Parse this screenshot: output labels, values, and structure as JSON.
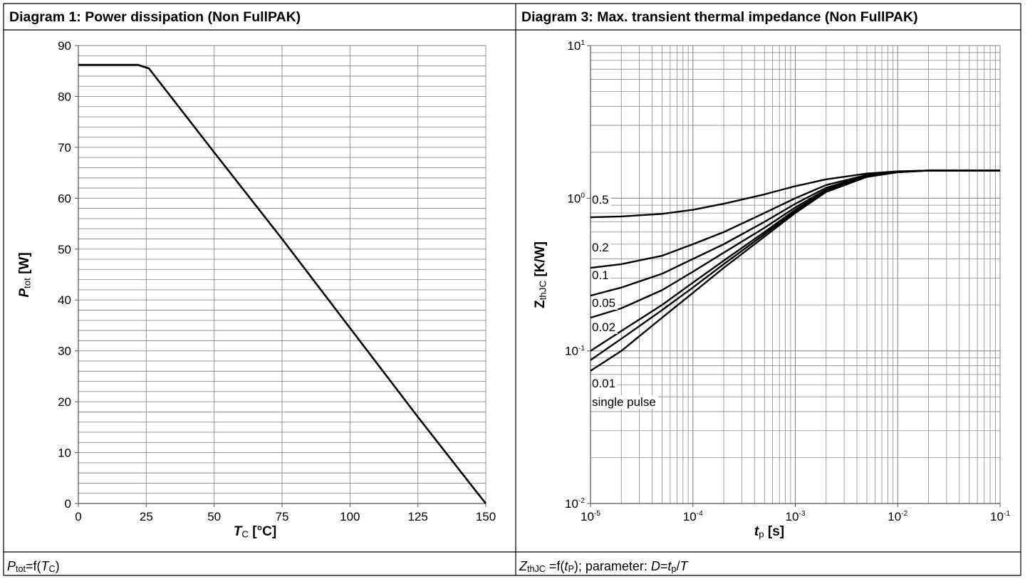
{
  "panels": [
    {
      "header": "Diagram 1: Power dissipation (Non FullPAK)",
      "footer": [
        {
          "t": "P",
          "i": true
        },
        {
          "t": "tot",
          "sub": true
        },
        {
          "t": "=f("
        },
        {
          "t": "T",
          "i": true
        },
        {
          "t": "C",
          "sub": true
        },
        {
          "t": ")"
        }
      ]
    },
    {
      "header": "Diagram 3: Max. transient thermal impedance (Non FullPAK)",
      "footer": [
        {
          "t": "Z",
          "i": true
        },
        {
          "t": "thJC",
          "sub": true
        },
        {
          "t": " =f("
        },
        {
          "t": "t",
          "i": true
        },
        {
          "t": "P",
          "sub": true
        },
        {
          "t": "); parameter: "
        },
        {
          "t": "D",
          "i": true
        },
        {
          "t": "="
        },
        {
          "t": "t",
          "i": true
        },
        {
          "t": "p",
          "sub": true
        },
        {
          "t": "/"
        },
        {
          "t": "T",
          "i": true
        }
      ]
    }
  ],
  "chart_data": [
    {
      "type": "line",
      "title": "Diagram 1: Power dissipation (Non FullPAK)",
      "xlabel": [
        {
          "t": "T",
          "b": true,
          "i": true
        },
        {
          "t": "C",
          "sub": true
        },
        {
          "t": " [°C]",
          "b": true
        }
      ],
      "ylabel": [
        {
          "t": "P",
          "b": true,
          "i": true
        },
        {
          "t": "tot",
          "sub": true
        },
        {
          "t": " [W]",
          "b": true
        }
      ],
      "xlim": [
        0,
        150
      ],
      "ylim": [
        0,
        90
      ],
      "x_ticks": [
        0,
        25,
        50,
        75,
        100,
        125,
        150
      ],
      "y_ticks": [
        0,
        10,
        20,
        30,
        40,
        50,
        60,
        70,
        80,
        90
      ],
      "grid": true,
      "series": [
        {
          "x": [
            0,
            22,
            26,
            50,
            75,
            100,
            125,
            147,
            150
          ],
          "y": [
            86.2,
            86.2,
            85.5,
            69,
            52,
            34.5,
            17,
            2,
            0
          ]
        }
      ]
    },
    {
      "type": "line",
      "title": "Diagram 3: Max. transient thermal impedance (Non FullPAK)",
      "xlabel": [
        {
          "t": "t",
          "b": true,
          "i": true
        },
        {
          "t": "p",
          "sub": true
        },
        {
          "t": " [s]",
          "b": true
        }
      ],
      "ylabel": [
        {
          "t": "Z",
          "b": true
        },
        {
          "t": "thJC",
          "sub": true
        },
        {
          "t": " [K/W]",
          "b": true
        }
      ],
      "x_scale": "log",
      "y_scale": "log",
      "xlim": [
        1e-05,
        0.1
      ],
      "ylim": [
        0.01,
        10
      ],
      "x_ticks": [
        {
          "base": "10",
          "exp": "-5"
        },
        {
          "base": "10",
          "exp": "-4"
        },
        {
          "base": "10",
          "exp": "-3"
        },
        {
          "base": "10",
          "exp": "-2"
        },
        {
          "base": "10",
          "exp": "-1"
        }
      ],
      "y_ticks": [
        {
          "base": "10",
          "exp": "-2"
        },
        {
          "base": "10",
          "exp": "-1"
        },
        {
          "base": "10",
          "exp": "0"
        },
        {
          "base": "10",
          "exp": "1"
        }
      ],
      "grid": true,
      "x": [
        1e-05,
        2e-05,
        5e-05,
        0.0001,
        0.0002,
        0.0005,
        0.001,
        0.002,
        0.005,
        0.01,
        0.02,
        0.05,
        0.1
      ],
      "series": [
        {
          "name": "0.5",
          "y": [
            0.75,
            0.76,
            0.79,
            0.84,
            0.92,
            1.06,
            1.2,
            1.33,
            1.45,
            1.5,
            1.52,
            1.52,
            1.52
          ]
        },
        {
          "name": "0.2",
          "y": [
            0.35,
            0.37,
            0.42,
            0.5,
            0.6,
            0.8,
            1.0,
            1.22,
            1.42,
            1.49,
            1.52,
            1.52,
            1.52
          ]
        },
        {
          "name": "0.1",
          "y": [
            0.23,
            0.26,
            0.32,
            0.4,
            0.5,
            0.7,
            0.92,
            1.17,
            1.41,
            1.49,
            1.52,
            1.52,
            1.52
          ]
        },
        {
          "name": "0.05",
          "y": [
            0.165,
            0.19,
            0.25,
            0.33,
            0.44,
            0.64,
            0.87,
            1.14,
            1.4,
            1.49,
            1.52,
            1.52,
            1.52
          ]
        },
        {
          "name": "0.02",
          "y": [
            0.1,
            0.135,
            0.2,
            0.28,
            0.39,
            0.6,
            0.84,
            1.12,
            1.39,
            1.48,
            1.52,
            1.52,
            1.52
          ]
        },
        {
          "name": "0.01",
          "y": [
            0.087,
            0.12,
            0.185,
            0.26,
            0.37,
            0.58,
            0.82,
            1.11,
            1.39,
            1.48,
            1.52,
            1.52,
            1.52
          ]
        },
        {
          "name": "single pulse",
          "y": [
            0.074,
            0.1,
            0.165,
            0.24,
            0.35,
            0.56,
            0.8,
            1.1,
            1.38,
            1.48,
            1.52,
            1.52,
            1.52
          ]
        }
      ]
    }
  ]
}
